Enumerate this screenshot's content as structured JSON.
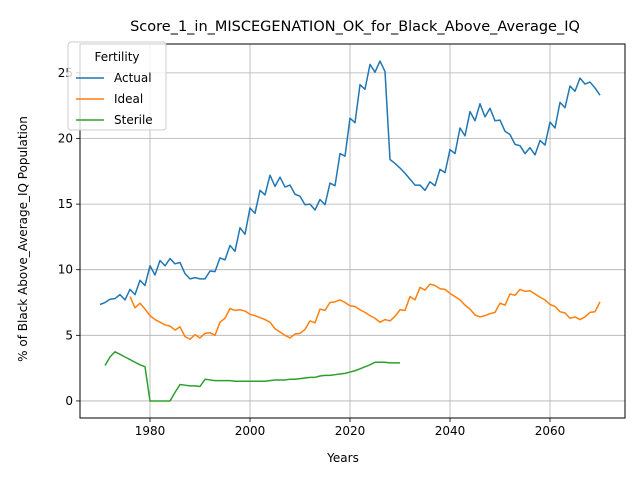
{
  "chart_data": {
    "type": "line",
    "title": "Score_1_in_MISCEGENATION_OK_for_Black_Above_Average_IQ",
    "xlabel": "Years",
    "ylabel": "% of Black Above_Average_IQ Population",
    "xlim": [
      1966,
      2075
    ],
    "ylim": [
      -1.3,
      27.2
    ],
    "xticks": [
      1980,
      2000,
      2020,
      2040,
      2060
    ],
    "yticks": [
      0,
      5,
      10,
      15,
      20,
      25
    ],
    "grid": true,
    "legend": {
      "title": "Fertility",
      "position": "upper left"
    },
    "series": [
      {
        "name": "Actual",
        "color": "#1f77b4",
        "points": [
          [
            1970,
            7.35
          ],
          [
            1971,
            7.5
          ],
          [
            1972,
            7.75
          ],
          [
            1973,
            7.8
          ],
          [
            1974,
            8.1
          ],
          [
            1975,
            7.7
          ],
          [
            1976,
            8.5
          ],
          [
            1977,
            8.1
          ],
          [
            1978,
            9.2
          ],
          [
            1979,
            8.8
          ],
          [
            1980,
            10.3
          ],
          [
            1981,
            9.6
          ],
          [
            1982,
            10.7
          ],
          [
            1983,
            10.3
          ],
          [
            1984,
            10.85
          ],
          [
            1985,
            10.45
          ],
          [
            1986,
            10.55
          ],
          [
            1987,
            9.7
          ],
          [
            1988,
            9.3
          ],
          [
            1989,
            9.4
          ],
          [
            1990,
            9.3
          ],
          [
            1991,
            9.3
          ],
          [
            1992,
            9.9
          ],
          [
            1993,
            9.85
          ],
          [
            1994,
            10.9
          ],
          [
            1995,
            10.75
          ],
          [
            1996,
            11.85
          ],
          [
            1997,
            11.4
          ],
          [
            1998,
            13.2
          ],
          [
            1999,
            12.7
          ],
          [
            2000,
            14.7
          ],
          [
            2001,
            14.3
          ],
          [
            2002,
            16.05
          ],
          [
            2003,
            15.7
          ],
          [
            2004,
            17.2
          ],
          [
            2005,
            16.35
          ],
          [
            2006,
            17.05
          ],
          [
            2007,
            16.3
          ],
          [
            2008,
            16.45
          ],
          [
            2009,
            15.75
          ],
          [
            2010,
            15.6
          ],
          [
            2011,
            14.95
          ],
          [
            2012,
            15.0
          ],
          [
            2013,
            14.55
          ],
          [
            2014,
            15.35
          ],
          [
            2015,
            14.95
          ],
          [
            2016,
            16.6
          ],
          [
            2017,
            16.4
          ],
          [
            2018,
            18.85
          ],
          [
            2019,
            18.65
          ],
          [
            2020,
            21.55
          ],
          [
            2021,
            21.2
          ],
          [
            2022,
            24.1
          ],
          [
            2023,
            23.75
          ],
          [
            2024,
            25.65
          ],
          [
            2025,
            25.05
          ],
          [
            2026,
            25.9
          ],
          [
            2027,
            25.1
          ],
          [
            2028,
            18.4
          ],
          [
            2029,
            18.1
          ],
          [
            2030,
            17.75
          ],
          [
            2031,
            17.35
          ],
          [
            2032,
            16.9
          ],
          [
            2033,
            16.45
          ],
          [
            2034,
            16.45
          ],
          [
            2035,
            16.05
          ],
          [
            2036,
            16.7
          ],
          [
            2037,
            16.4
          ],
          [
            2038,
            17.65
          ],
          [
            2039,
            17.4
          ],
          [
            2040,
            19.15
          ],
          [
            2041,
            18.85
          ],
          [
            2042,
            20.8
          ],
          [
            2043,
            20.2
          ],
          [
            2044,
            22.05
          ],
          [
            2045,
            21.35
          ],
          [
            2046,
            22.65
          ],
          [
            2047,
            21.65
          ],
          [
            2048,
            22.3
          ],
          [
            2049,
            21.35
          ],
          [
            2050,
            21.4
          ],
          [
            2051,
            20.55
          ],
          [
            2052,
            20.3
          ],
          [
            2053,
            19.55
          ],
          [
            2054,
            19.45
          ],
          [
            2055,
            18.85
          ],
          [
            2056,
            19.3
          ],
          [
            2057,
            18.75
          ],
          [
            2058,
            19.85
          ],
          [
            2059,
            19.5
          ],
          [
            2060,
            21.25
          ],
          [
            2061,
            20.8
          ],
          [
            2062,
            22.75
          ],
          [
            2063,
            22.35
          ],
          [
            2064,
            24.0
          ],
          [
            2065,
            23.6
          ],
          [
            2066,
            24.6
          ],
          [
            2067,
            24.15
          ],
          [
            2068,
            24.3
          ],
          [
            2069,
            23.85
          ],
          [
            2070,
            23.3
          ]
        ]
      },
      {
        "name": "Ideal",
        "color": "#ff7f0e",
        "points": [
          [
            1976,
            7.95
          ],
          [
            1977,
            7.1
          ],
          [
            1978,
            7.45
          ],
          [
            1979,
            7.0
          ],
          [
            1980,
            6.5
          ],
          [
            1981,
            6.2
          ],
          [
            1982,
            6.0
          ],
          [
            1983,
            5.8
          ],
          [
            1984,
            5.7
          ],
          [
            1985,
            5.4
          ],
          [
            1986,
            5.65
          ],
          [
            1987,
            4.9
          ],
          [
            1988,
            4.7
          ],
          [
            1989,
            5.05
          ],
          [
            1990,
            4.8
          ],
          [
            1991,
            5.15
          ],
          [
            1992,
            5.2
          ],
          [
            1993,
            5.0
          ],
          [
            1994,
            6.0
          ],
          [
            1995,
            6.3
          ],
          [
            1996,
            7.05
          ],
          [
            1997,
            6.9
          ],
          [
            1998,
            6.95
          ],
          [
            1999,
            6.85
          ],
          [
            2000,
            6.6
          ],
          [
            2001,
            6.5
          ],
          [
            2002,
            6.35
          ],
          [
            2003,
            6.2
          ],
          [
            2004,
            6.0
          ],
          [
            2005,
            5.5
          ],
          [
            2006,
            5.25
          ],
          [
            2007,
            5.0
          ],
          [
            2008,
            4.8
          ],
          [
            2009,
            5.1
          ],
          [
            2010,
            5.15
          ],
          [
            2011,
            5.45
          ],
          [
            2012,
            6.1
          ],
          [
            2013,
            5.95
          ],
          [
            2014,
            7.0
          ],
          [
            2015,
            6.9
          ],
          [
            2016,
            7.5
          ],
          [
            2017,
            7.55
          ],
          [
            2018,
            7.7
          ],
          [
            2019,
            7.5
          ],
          [
            2020,
            7.25
          ],
          [
            2021,
            7.2
          ],
          [
            2022,
            6.95
          ],
          [
            2023,
            6.75
          ],
          [
            2024,
            6.5
          ],
          [
            2025,
            6.3
          ],
          [
            2026,
            6.0
          ],
          [
            2027,
            6.2
          ],
          [
            2028,
            6.1
          ],
          [
            2029,
            6.45
          ],
          [
            2030,
            6.95
          ],
          [
            2031,
            6.9
          ],
          [
            2032,
            7.95
          ],
          [
            2033,
            7.7
          ],
          [
            2034,
            8.65
          ],
          [
            2035,
            8.45
          ],
          [
            2036,
            8.9
          ],
          [
            2037,
            8.8
          ],
          [
            2038,
            8.55
          ],
          [
            2039,
            8.5
          ],
          [
            2040,
            8.2
          ],
          [
            2041,
            7.95
          ],
          [
            2042,
            7.7
          ],
          [
            2043,
            7.3
          ],
          [
            2044,
            7.0
          ],
          [
            2045,
            6.55
          ],
          [
            2046,
            6.4
          ],
          [
            2047,
            6.5
          ],
          [
            2048,
            6.65
          ],
          [
            2049,
            6.75
          ],
          [
            2050,
            7.45
          ],
          [
            2051,
            7.3
          ],
          [
            2052,
            8.15
          ],
          [
            2053,
            8.05
          ],
          [
            2054,
            8.5
          ],
          [
            2055,
            8.35
          ],
          [
            2056,
            8.4
          ],
          [
            2057,
            8.15
          ],
          [
            2058,
            7.9
          ],
          [
            2059,
            7.7
          ],
          [
            2060,
            7.35
          ],
          [
            2061,
            7.2
          ],
          [
            2062,
            6.8
          ],
          [
            2063,
            6.7
          ],
          [
            2064,
            6.3
          ],
          [
            2065,
            6.4
          ],
          [
            2066,
            6.2
          ],
          [
            2067,
            6.4
          ],
          [
            2068,
            6.75
          ],
          [
            2069,
            6.8
          ],
          [
            2070,
            7.55
          ]
        ]
      },
      {
        "name": "Sterile",
        "color": "#2ca02c",
        "points": [
          [
            1971,
            2.7
          ],
          [
            1972,
            3.35
          ],
          [
            1973,
            3.75
          ],
          [
            1974,
            3.55
          ],
          [
            1975,
            3.35
          ],
          [
            1976,
            3.15
          ],
          [
            1977,
            2.95
          ],
          [
            1978,
            2.75
          ],
          [
            1979,
            2.6
          ],
          [
            1980,
            0.0
          ],
          [
            1981,
            0.0
          ],
          [
            1982,
            0.0
          ],
          [
            1983,
            0.0
          ],
          [
            1984,
            0.0
          ],
          [
            1985,
            0.65
          ],
          [
            1986,
            1.25
          ],
          [
            1987,
            1.2
          ],
          [
            1988,
            1.15
          ],
          [
            1989,
            1.15
          ],
          [
            1990,
            1.1
          ],
          [
            1991,
            1.65
          ],
          [
            1992,
            1.6
          ],
          [
            1993,
            1.55
          ],
          [
            1994,
            1.55
          ],
          [
            1995,
            1.55
          ],
          [
            1996,
            1.55
          ],
          [
            1997,
            1.5
          ],
          [
            1998,
            1.5
          ],
          [
            1999,
            1.5
          ],
          [
            2000,
            1.5
          ],
          [
            2001,
            1.5
          ],
          [
            2002,
            1.5
          ],
          [
            2003,
            1.5
          ],
          [
            2004,
            1.55
          ],
          [
            2005,
            1.6
          ],
          [
            2006,
            1.6
          ],
          [
            2007,
            1.6
          ],
          [
            2008,
            1.65
          ],
          [
            2009,
            1.65
          ],
          [
            2010,
            1.7
          ],
          [
            2011,
            1.75
          ],
          [
            2012,
            1.8
          ],
          [
            2013,
            1.8
          ],
          [
            2014,
            1.9
          ],
          [
            2015,
            1.95
          ],
          [
            2016,
            1.95
          ],
          [
            2017,
            2.0
          ],
          [
            2018,
            2.05
          ],
          [
            2019,
            2.1
          ],
          [
            2020,
            2.2
          ],
          [
            2021,
            2.3
          ],
          [
            2022,
            2.45
          ],
          [
            2023,
            2.6
          ],
          [
            2024,
            2.75
          ],
          [
            2025,
            2.95
          ],
          [
            2026,
            2.95
          ],
          [
            2027,
            2.95
          ],
          [
            2028,
            2.9
          ],
          [
            2029,
            2.9
          ],
          [
            2030,
            2.9
          ]
        ]
      }
    ]
  }
}
